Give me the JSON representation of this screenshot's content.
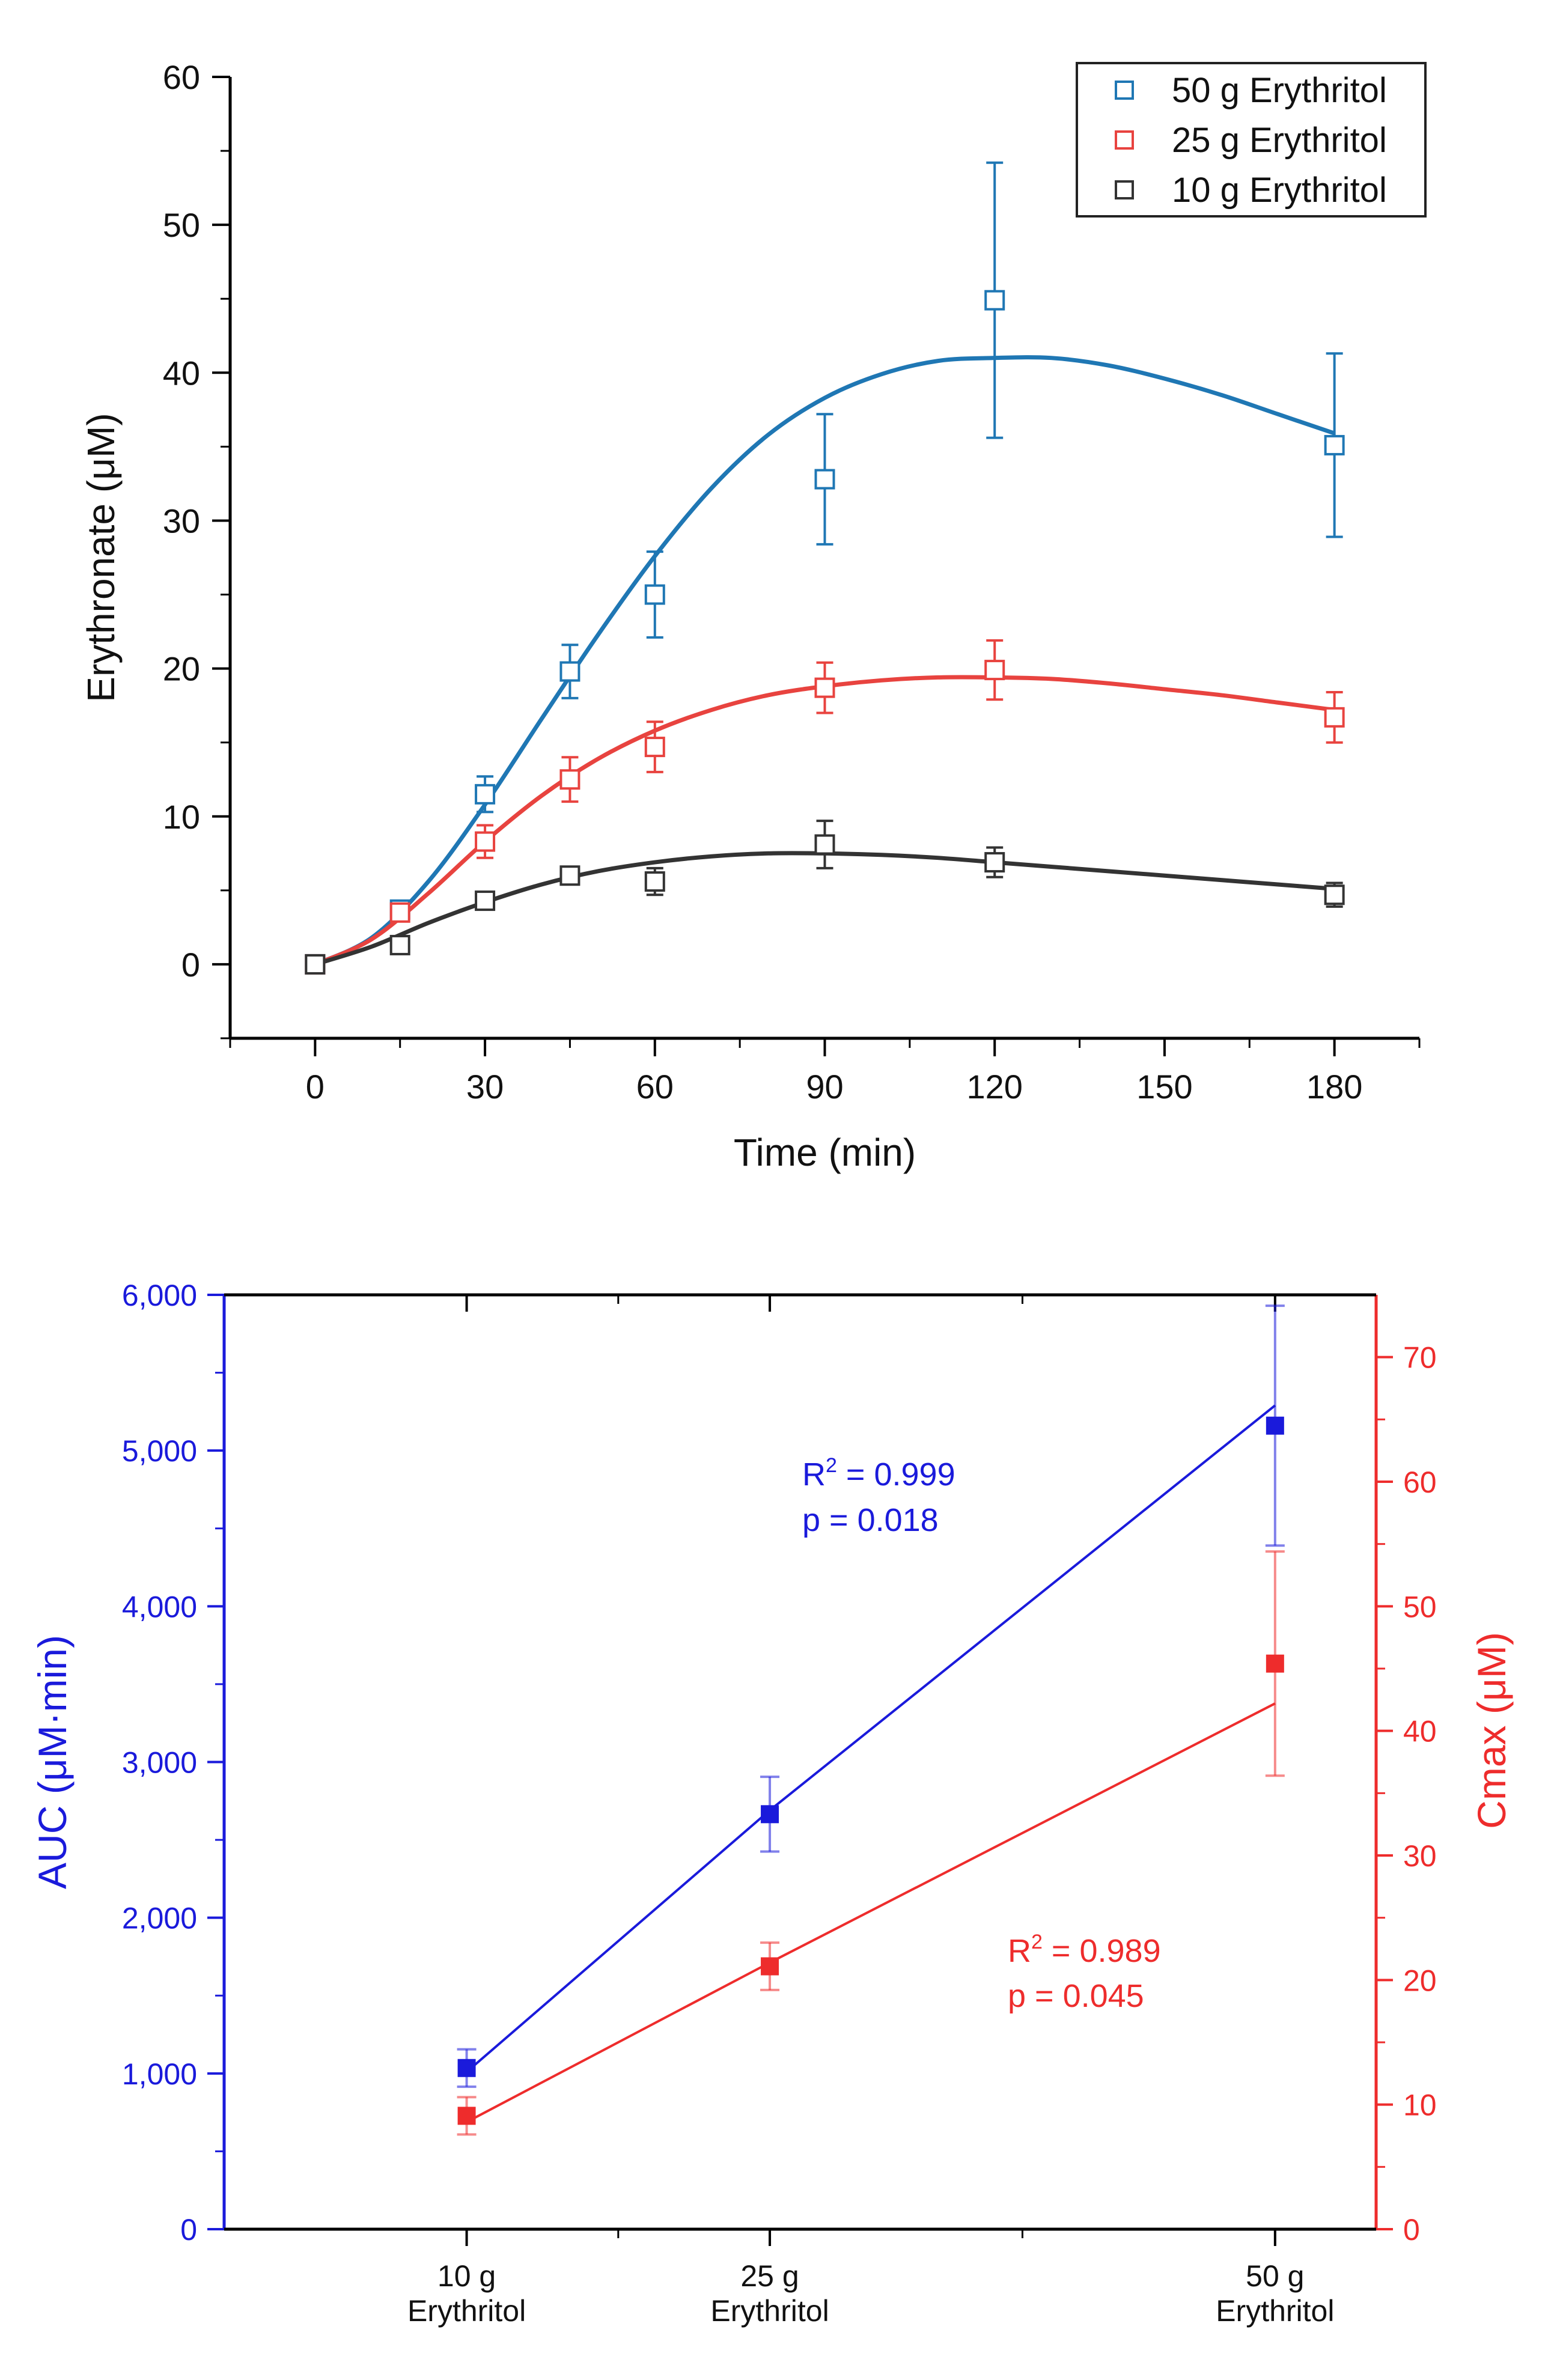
{
  "chart_data": [
    {
      "type": "scatter",
      "title": "",
      "xlabel": "Time (min)",
      "ylabel": "Erythronate (μM)",
      "xlim": [
        -15,
        195
      ],
      "ylim": [
        -5,
        60
      ],
      "xticks": [
        0,
        30,
        60,
        90,
        120,
        150,
        180
      ],
      "xtick_labels": [
        "0",
        "30",
        "60",
        "90",
        "120",
        "150",
        "180"
      ],
      "yticks": [
        0,
        10,
        20,
        30,
        40,
        50,
        60
      ],
      "ytick_labels": [
        "0",
        "10",
        "20",
        "30",
        "40",
        "50",
        "60"
      ],
      "grid": false,
      "legend_position": "top-right",
      "series": [
        {
          "name": "50 g Erythritol",
          "color": "#1f77b4",
          "x": [
            0,
            15,
            30,
            45,
            60,
            90,
            120,
            180
          ],
          "y": [
            0,
            3.7,
            11.5,
            19.8,
            25.0,
            32.8,
            44.9,
            35.1
          ],
          "err": [
            0.2,
            0.6,
            1.2,
            1.8,
            2.9,
            4.4,
            9.3,
            6.2
          ],
          "fit_x": [
            0,
            10,
            20,
            30,
            40,
            50,
            60,
            70,
            80,
            90,
            100,
            110,
            120,
            130,
            140,
            150,
            160,
            170,
            180
          ],
          "fit_y": [
            0,
            1.8,
            5.6,
            10.8,
            16.6,
            22.3,
            27.6,
            32.2,
            35.8,
            38.3,
            39.9,
            40.8,
            41.0,
            41.0,
            40.5,
            39.6,
            38.5,
            37.2,
            35.9
          ]
        },
        {
          "name": "25 g Erythritol",
          "color": "#e8433f",
          "x": [
            0,
            15,
            30,
            45,
            60,
            90,
            120,
            180
          ],
          "y": [
            0,
            3.5,
            8.3,
            12.5,
            14.7,
            18.7,
            19.9,
            16.7
          ],
          "err": [
            0.2,
            0.6,
            1.1,
            1.5,
            1.7,
            1.7,
            2.0,
            1.7
          ],
          "fit_x": [
            0,
            10,
            20,
            30,
            40,
            50,
            60,
            70,
            80,
            90,
            100,
            110,
            120,
            130,
            140,
            150,
            160,
            170,
            180
          ],
          "fit_y": [
            0,
            1.7,
            4.8,
            8.3,
            11.4,
            13.9,
            15.8,
            17.2,
            18.2,
            18.8,
            19.2,
            19.4,
            19.4,
            19.3,
            19.0,
            18.6,
            18.2,
            17.7,
            17.2
          ]
        },
        {
          "name": "10 g Erythritol",
          "color": "#333333",
          "x": [
            0,
            15,
            30,
            45,
            60,
            90,
            120,
            180
          ],
          "y": [
            0,
            1.3,
            4.3,
            6.0,
            5.6,
            8.1,
            6.9,
            4.7
          ],
          "err": [
            0.2,
            0.4,
            0.5,
            0.6,
            0.9,
            1.6,
            1.0,
            0.8
          ],
          "fit_x": [
            0,
            10,
            20,
            30,
            40,
            50,
            60,
            70,
            80,
            90,
            100,
            110,
            120,
            130,
            140,
            150,
            160,
            170,
            180
          ],
          "fit_y": [
            0,
            1.2,
            2.8,
            4.2,
            5.4,
            6.3,
            6.9,
            7.3,
            7.5,
            7.5,
            7.4,
            7.2,
            6.9,
            6.6,
            6.3,
            6.0,
            5.7,
            5.4,
            5.1
          ]
        }
      ]
    },
    {
      "type": "scatter",
      "title": "",
      "xlabel": "",
      "categories": [
        "10 g Erythritol",
        "25 g Erythritol",
        "50 g Erythritol"
      ],
      "category_lines": [
        [
          "10 g",
          "Erythritol"
        ],
        [
          "25 g",
          "Erythritol"
        ],
        [
          "50 g",
          "Erythritol"
        ]
      ],
      "x": [
        10,
        25,
        50
      ],
      "xlim": [
        -2,
        55
      ],
      "ylabel_left": "AUC (μM·min)",
      "ylabel_right": "Cmax (μM)",
      "ylim_left": [
        0,
        6000
      ],
      "ylim_right": [
        0,
        75
      ],
      "yticks_left": [
        0,
        1000,
        2000,
        3000,
        4000,
        5000,
        6000
      ],
      "ytick_labels_left": [
        "0",
        "1,000",
        "2,000",
        "3,000",
        "4,000",
        "5,000",
        "6,000"
      ],
      "yticks_right": [
        0,
        10,
        20,
        30,
        40,
        50,
        60,
        70
      ],
      "ytick_labels_right": [
        "0",
        "10",
        "20",
        "30",
        "40",
        "50",
        "60",
        "70"
      ],
      "grid": false,
      "series": [
        {
          "name": "AUC",
          "axis": "left",
          "color": "#1a1adb",
          "values": [
            1035,
            2665,
            5160
          ],
          "err": [
            120,
            240,
            770
          ],
          "fit": [
            1010,
            2690,
            5290
          ]
        },
        {
          "name": "Cmax",
          "axis": "right",
          "color": "#ee2c2c",
          "values": [
            9.1,
            21.1,
            45.4
          ],
          "err": [
            1.5,
            1.9,
            9.0
          ],
          "fit": [
            8.6,
            21.4,
            42.2
          ]
        }
      ],
      "annotations": [
        {
          "series": "AUC",
          "r2_prefix": "R",
          "r2_sup": "2",
          "r2_value": " = 0.999",
          "p_text": "p = 0.018",
          "color": "#1a1adb"
        },
        {
          "series": "Cmax",
          "r2_prefix": "R",
          "r2_sup": "2",
          "r2_value": " = 0.989",
          "p_text": "p = 0.045",
          "color": "#ee2c2c"
        }
      ]
    }
  ]
}
